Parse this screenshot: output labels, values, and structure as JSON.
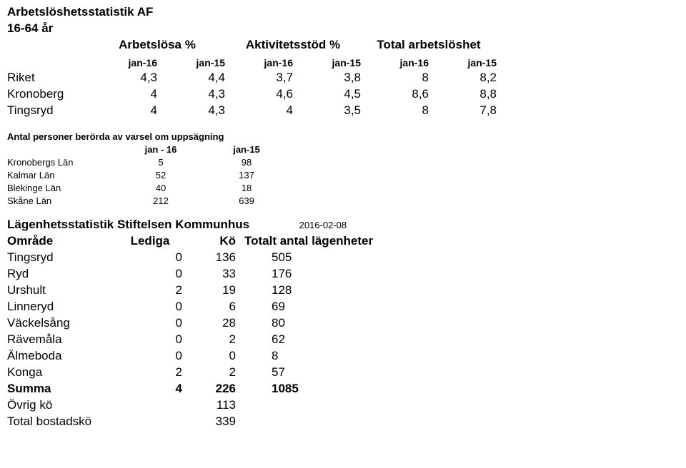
{
  "title1": "Arbetslöshetsstatistik AF",
  "title2": "16-64 år",
  "main": {
    "group_headers": [
      "Arbetslösa %",
      "Aktivitetsstöd %",
      "Total arbetslöshet"
    ],
    "col_headers": [
      "jan-16",
      "jan-15",
      "jan-16",
      "jan-15",
      "jan-16",
      "jan-15"
    ],
    "rows": [
      {
        "label": "Riket",
        "v": [
          "4,3",
          "4,4",
          "3,7",
          "3,8",
          "8",
          "8,2"
        ]
      },
      {
        "label": "Kronoberg",
        "v": [
          "4",
          "4,3",
          "4,6",
          "4,5",
          "8,6",
          "8,8"
        ]
      },
      {
        "label": "Tingsryd",
        "v": [
          "4",
          "4,3",
          "4",
          "3,5",
          "8",
          "7,8"
        ]
      }
    ]
  },
  "varsel": {
    "title": "Antal personer berörda av varsel om uppsägning",
    "col_headers": [
      "jan - 16",
      "jan-15"
    ],
    "rows": [
      {
        "label": "Kronobergs Län",
        "v": [
          "5",
          "98"
        ]
      },
      {
        "label": "Kalmar Län",
        "v": [
          "52",
          "137"
        ]
      },
      {
        "label": "Blekinge Län",
        "v": [
          "40",
          "18"
        ]
      },
      {
        "label": "Skåne Län",
        "v": [
          "212",
          "639"
        ]
      }
    ]
  },
  "lagenhet": {
    "title": "Lägenhetsstatistik Stiftelsen Kommunhus",
    "date": "2016-02-08",
    "headers": [
      "Område",
      "Lediga",
      "Kö",
      "Totalt antal lägenheter"
    ],
    "rows": [
      {
        "label": "Tingsryd",
        "v": [
          "0",
          "136",
          "505"
        ]
      },
      {
        "label": "Ryd",
        "v": [
          "0",
          "33",
          "176"
        ]
      },
      {
        "label": "Urshult",
        "v": [
          "2",
          "19",
          "128"
        ]
      },
      {
        "label": "Linneryd",
        "v": [
          "0",
          "6",
          "69"
        ]
      },
      {
        "label": "Väckelsång",
        "v": [
          "0",
          "28",
          "80"
        ]
      },
      {
        "label": "Rävemåla",
        "v": [
          "0",
          "2",
          "62"
        ]
      },
      {
        "label": "Älmeboda",
        "v": [
          "0",
          "0",
          "8"
        ]
      },
      {
        "label": "Konga",
        "v": [
          "2",
          "2",
          "57"
        ]
      }
    ],
    "summary": [
      {
        "label": "Summa",
        "v": [
          "4",
          "226",
          "1085"
        ],
        "bold": true
      },
      {
        "label": "Övrig kö",
        "v": [
          "",
          "113",
          ""
        ]
      },
      {
        "label": "Total bostadskö",
        "v": [
          "",
          "339",
          ""
        ]
      }
    ]
  }
}
